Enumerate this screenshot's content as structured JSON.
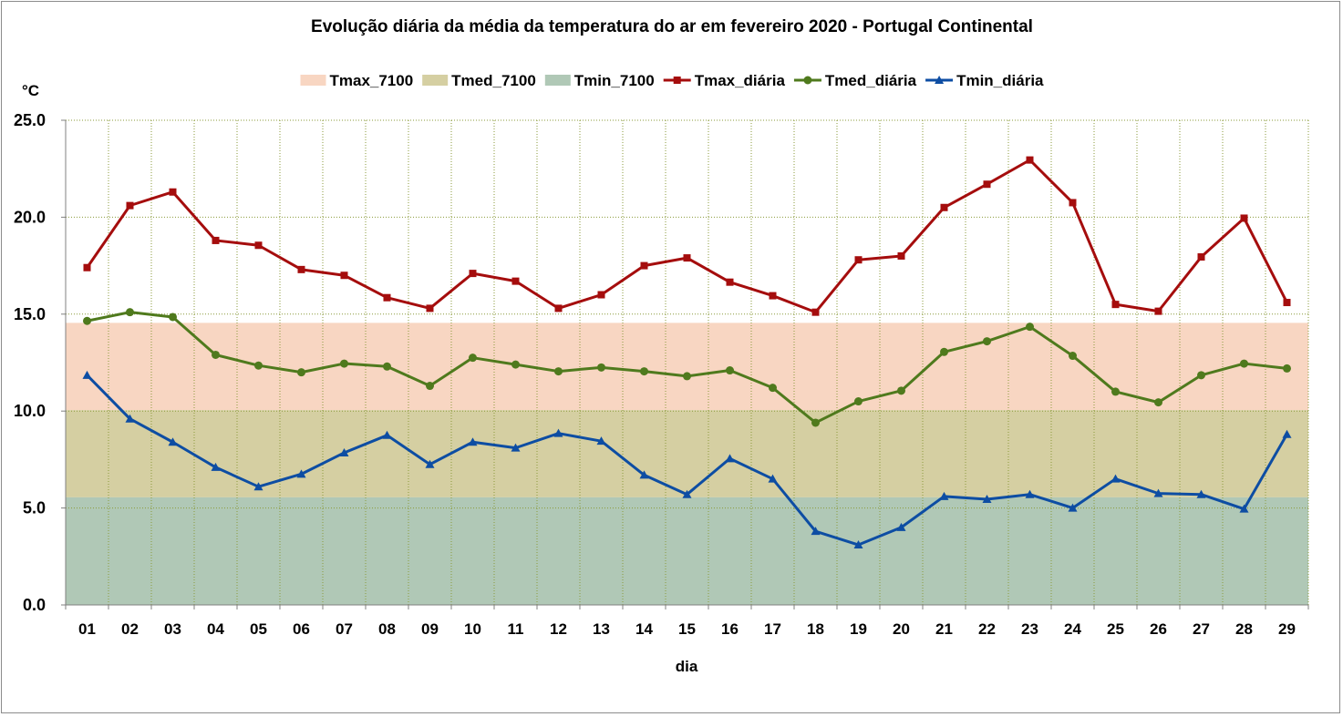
{
  "chart_data": {
    "type": "line",
    "title": "Evolução diária da média da temperatura do ar em fevereiro 2020 - Portugal Continental",
    "xlabel": "dia",
    "ylabel": "°C",
    "ylim": [
      0,
      25
    ],
    "yticks": [
      "0.0",
      "5.0",
      "10.0",
      "15.0",
      "20.0",
      "25.0"
    ],
    "categories": [
      "01",
      "02",
      "03",
      "04",
      "05",
      "06",
      "07",
      "08",
      "09",
      "10",
      "11",
      "12",
      "13",
      "14",
      "15",
      "16",
      "17",
      "18",
      "19",
      "20",
      "21",
      "22",
      "23",
      "24",
      "25",
      "26",
      "27",
      "28",
      "29"
    ],
    "grid": true,
    "legend_position": "top",
    "bands": [
      {
        "name": "Tmax_7100",
        "value": 14.55,
        "color": "#f8d6c2"
      },
      {
        "name": "Tmed_7100",
        "value": 10.05,
        "color": "#d5cfa2"
      },
      {
        "name": "Tmin_7100",
        "value": 5.55,
        "color": "#b0c8b6"
      }
    ],
    "series": [
      {
        "name": "Tmax_diária",
        "color": "#a50d0d",
        "marker": "square",
        "values": [
          17.4,
          20.6,
          21.3,
          18.8,
          18.55,
          17.3,
          17.0,
          15.85,
          15.3,
          17.1,
          16.7,
          15.3,
          16.0,
          17.5,
          17.9,
          16.65,
          15.95,
          15.1,
          17.8,
          18.0,
          20.5,
          21.7,
          22.95,
          20.75,
          15.5,
          15.15,
          17.95,
          19.95,
          15.6
        ]
      },
      {
        "name": "Tmed_diária",
        "color": "#4f7a1d",
        "marker": "circle",
        "values": [
          14.65,
          15.1,
          14.85,
          12.9,
          12.35,
          12.0,
          12.45,
          12.3,
          11.3,
          12.75,
          12.4,
          12.05,
          12.25,
          12.05,
          11.8,
          12.1,
          11.2,
          9.4,
          10.5,
          11.05,
          13.05,
          13.6,
          14.35,
          12.85,
          11.0,
          10.45,
          11.85,
          12.45,
          12.2
        ]
      },
      {
        "name": "Tmin_diária",
        "color": "#0d4da3",
        "marker": "triangle",
        "values": [
          11.85,
          9.6,
          8.4,
          7.1,
          6.1,
          6.75,
          7.85,
          8.75,
          7.25,
          8.4,
          8.1,
          8.85,
          8.45,
          6.7,
          5.7,
          7.55,
          6.5,
          3.8,
          3.1,
          4.0,
          5.6,
          5.45,
          5.7,
          5.0,
          6.5,
          5.75,
          5.7,
          4.95,
          8.8
        ]
      }
    ]
  }
}
